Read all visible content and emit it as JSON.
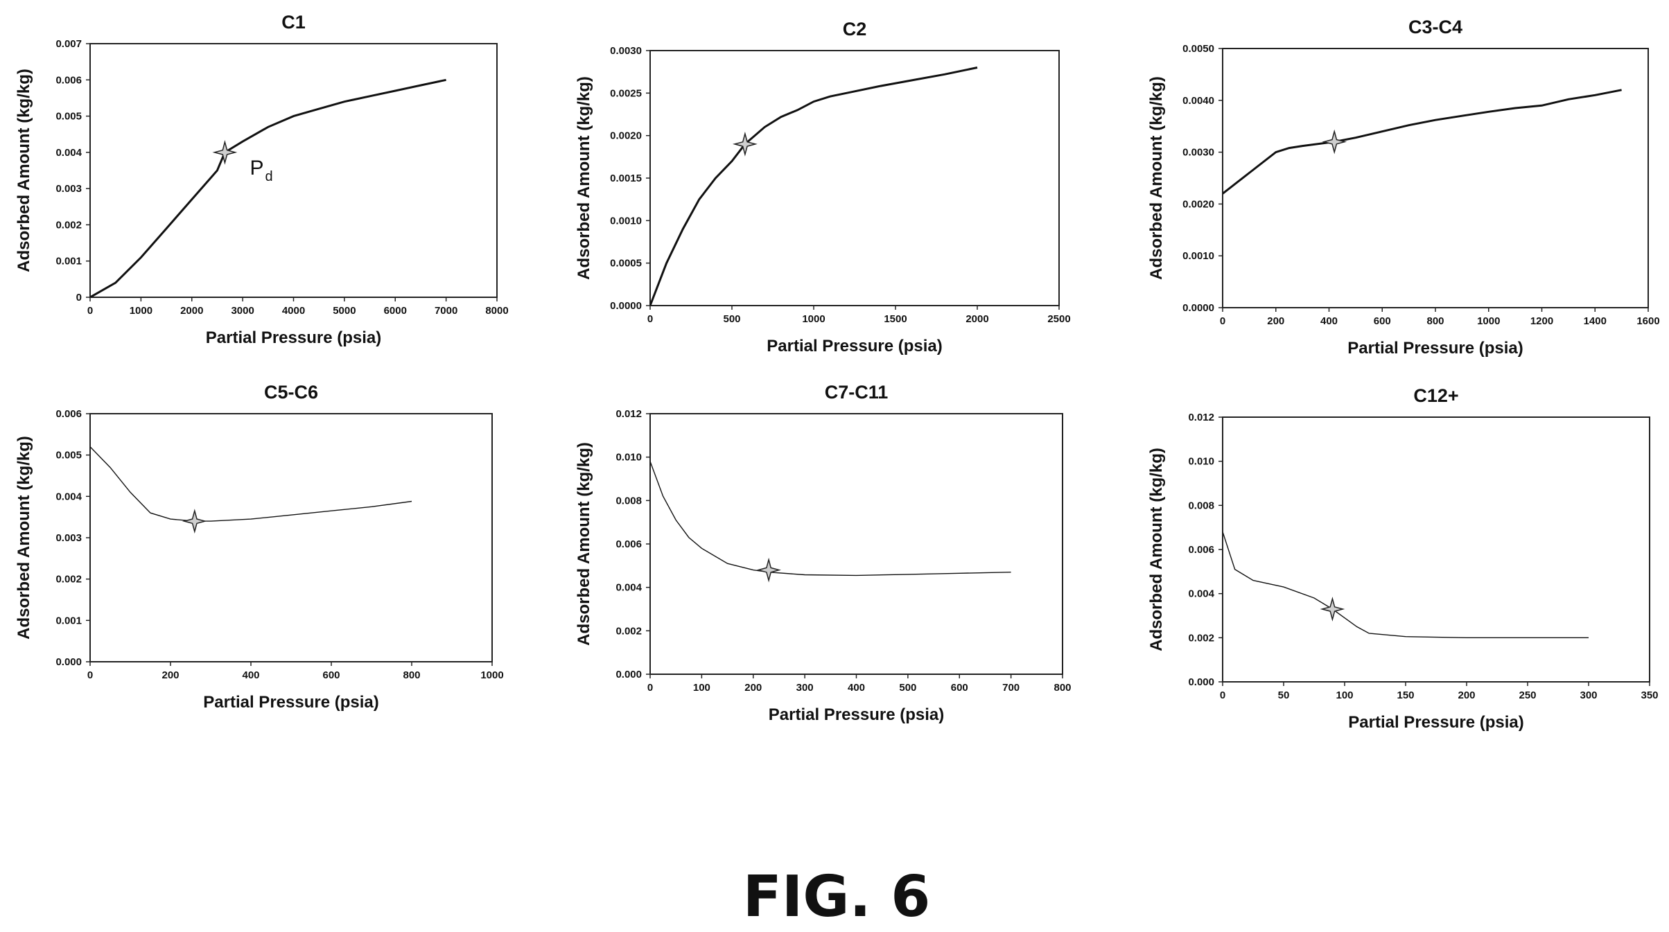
{
  "figure_caption": "FIG. 6",
  "chart_data": [
    {
      "type": "line",
      "title": "C1",
      "xlabel": "Partial Pressure (psia)",
      "ylabel": "Adsorbed Amount (kg/kg)",
      "xlim": [
        0,
        8000
      ],
      "ylim": [
        0,
        0.007
      ],
      "xticks": [
        "0",
        "1000",
        "2000",
        "3000",
        "4000",
        "5000",
        "6000",
        "7000",
        "8000"
      ],
      "yticks": [
        "0",
        "0.001",
        "0.002",
        "0.003",
        "0.004",
        "0.005",
        "0.006",
        "0.007"
      ],
      "x": [
        0,
        500,
        1000,
        1500,
        2000,
        2500,
        2650,
        3000,
        3500,
        4000,
        4500,
        5000,
        5500,
        6000,
        6500,
        7000
      ],
      "y": [
        0,
        0.0004,
        0.0011,
        0.0019,
        0.0027,
        0.0035,
        0.004,
        0.0043,
        0.0047,
        0.005,
        0.0052,
        0.0054,
        0.00555,
        0.0057,
        0.00585,
        0.006
      ],
      "marker": {
        "x": 2650,
        "y": 0.004
      },
      "annotation": {
        "text": "P",
        "subscript": "d"
      },
      "line_weight": "heavy",
      "grid": false
    },
    {
      "type": "line",
      "title": "C2",
      "xlabel": "Partial Pressure (psia)",
      "ylabel": "Adsorbed Amount (kg/kg)",
      "xlim": [
        0,
        2500
      ],
      "ylim": [
        0,
        0.003
      ],
      "xticks": [
        "0",
        "500",
        "1000",
        "1500",
        "2000",
        "2500"
      ],
      "yticks": [
        "0.0000",
        "0.0005",
        "0.0010",
        "0.0015",
        "0.0020",
        "0.0025",
        "0.0030"
      ],
      "x": [
        0,
        100,
        200,
        300,
        400,
        500,
        580,
        700,
        800,
        900,
        1000,
        1100,
        1200,
        1400,
        1600,
        1800,
        2000
      ],
      "y": [
        0,
        0.0005,
        0.0009,
        0.00125,
        0.0015,
        0.0017,
        0.0019,
        0.0021,
        0.00222,
        0.0023,
        0.0024,
        0.00246,
        0.0025,
        0.00258,
        0.00265,
        0.00272,
        0.0028
      ],
      "marker": {
        "x": 580,
        "y": 0.0019
      },
      "line_weight": "heavy",
      "grid": false
    },
    {
      "type": "line",
      "title": "C3-C4",
      "xlabel": "Partial Pressure (psia)",
      "ylabel": "Adsorbed Amount (kg/kg)",
      "xlim": [
        0,
        1600
      ],
      "ylim": [
        0,
        0.005
      ],
      "xticks": [
        "0",
        "200",
        "400",
        "600",
        "800",
        "1000",
        "1200",
        "1400",
        "1600"
      ],
      "yticks": [
        "0.0000",
        "0.0010",
        "0.0020",
        "0.0030",
        "0.0040",
        "0.0050"
      ],
      "x": [
        0,
        100,
        200,
        250,
        300,
        420,
        500,
        600,
        700,
        800,
        900,
        1000,
        1100,
        1200,
        1300,
        1400,
        1500
      ],
      "y": [
        0.0022,
        0.0026,
        0.003,
        0.00308,
        0.00312,
        0.0032,
        0.00328,
        0.0034,
        0.00352,
        0.00362,
        0.0037,
        0.00378,
        0.00385,
        0.0039,
        0.00402,
        0.0041,
        0.0042
      ],
      "marker": {
        "x": 420,
        "y": 0.0032
      },
      "line_weight": "heavy",
      "grid": false
    },
    {
      "type": "line",
      "title": "C5-C6",
      "xlabel": "Partial Pressure (psia)",
      "ylabel": "Adsorbed Amount (kg/kg)",
      "xlim": [
        0,
        1000
      ],
      "ylim": [
        0,
        0.006
      ],
      "xticks": [
        "0",
        "200",
        "400",
        "600",
        "800",
        "1000"
      ],
      "yticks": [
        "0.000",
        "0.001",
        "0.002",
        "0.003",
        "0.004",
        "0.005",
        "0.006"
      ],
      "x": [
        0,
        50,
        100,
        150,
        200,
        260,
        300,
        400,
        500,
        600,
        700,
        800
      ],
      "y": [
        0.0052,
        0.0047,
        0.0041,
        0.0036,
        0.00345,
        0.0034,
        0.0034,
        0.00345,
        0.00355,
        0.00365,
        0.00375,
        0.00388
      ],
      "marker": {
        "x": 260,
        "y": 0.0034
      },
      "line_weight": "light",
      "grid": false
    },
    {
      "type": "line",
      "title": "C7-C11",
      "xlabel": "Partial Pressure (psia)",
      "ylabel": "Adsorbed Amount (kg/kg)",
      "xlim": [
        0,
        800
      ],
      "ylim": [
        0,
        0.012
      ],
      "xticks": [
        "0",
        "100",
        "200",
        "300",
        "400",
        "500",
        "600",
        "700",
        "800"
      ],
      "yticks": [
        "0.000",
        "0.002",
        "0.004",
        "0.006",
        "0.008",
        "0.010",
        "0.012"
      ],
      "x": [
        0,
        25,
        50,
        75,
        100,
        150,
        200,
        230,
        300,
        400,
        500,
        600,
        700
      ],
      "y": [
        0.0098,
        0.0082,
        0.0071,
        0.0063,
        0.0058,
        0.0051,
        0.0048,
        0.0047,
        0.00458,
        0.00455,
        0.0046,
        0.00465,
        0.0047
      ],
      "marker": {
        "x": 230,
        "y": 0.0048
      },
      "line_weight": "light",
      "grid": false
    },
    {
      "type": "line",
      "title": "C12+",
      "xlabel": "Partial Pressure (psia)",
      "ylabel": "Adsorbed Amount (kg/kg)",
      "xlim": [
        0,
        350
      ],
      "ylim": [
        0,
        0.012
      ],
      "xticks": [
        "0",
        "50",
        "100",
        "150",
        "200",
        "250",
        "300",
        "350"
      ],
      "yticks": [
        "0.000",
        "0.002",
        "0.004",
        "0.006",
        "0.008",
        "0.010",
        "0.012"
      ],
      "x": [
        0,
        10,
        25,
        50,
        75,
        90,
        100,
        110,
        120,
        150,
        200,
        250,
        300
      ],
      "y": [
        0.0068,
        0.0051,
        0.0046,
        0.0043,
        0.0038,
        0.0033,
        0.0029,
        0.0025,
        0.0022,
        0.00205,
        0.002,
        0.002,
        0.002
      ],
      "marker": {
        "x": 90,
        "y": 0.0033
      },
      "line_weight": "light",
      "grid": false
    }
  ]
}
